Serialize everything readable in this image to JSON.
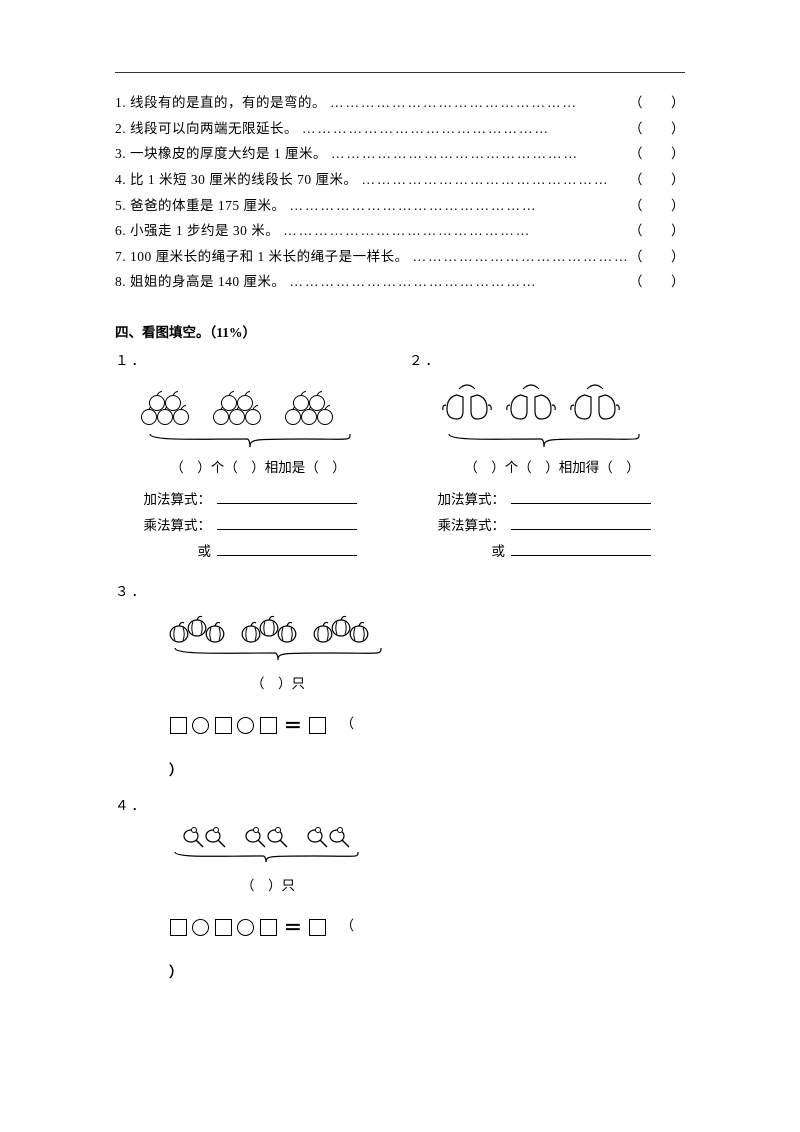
{
  "hr_color": "#333333",
  "text_color": "#000000",
  "bg_color": "#ffffff",
  "tf_items": [
    {
      "num": "1.",
      "text": "线段有的是直的，有的是弯的。"
    },
    {
      "num": "2.",
      "text": "线段可以向两端无限延长。"
    },
    {
      "num": "3.",
      "text": "一块橡皮的厚度大约是 1 厘米。"
    },
    {
      "num": "4.",
      "text": "比 1 米短 30 厘米的线段长 70 厘米。"
    },
    {
      "num": "5.",
      "text": "爸爸的体重是 175 厘米。"
    },
    {
      "num": "6.",
      "text": "小强走 1 步约是 30 米。"
    },
    {
      "num": "7.",
      "text": "100 厘米长的绳子和 1 米长的绳子是一样长。"
    },
    {
      "num": "8.",
      "text": "姐姐的身高是 140 厘米。"
    }
  ],
  "tf_paren": "（　　）",
  "section4_title": "四、看图填空。（11%）",
  "q1": {
    "num": "１．",
    "caption": "（　）个（　）相加是（　）",
    "lines": {
      "add": "加法算式：",
      "mul": "乘法算式：",
      "or": "或"
    },
    "pic": {
      "groups": 3,
      "per_group": 5,
      "item_type": "apple",
      "stroke": "#000000",
      "fill": "#ffffff"
    }
  },
  "q2": {
    "num": "２．",
    "caption": "（　）个（　）相加得（　）",
    "lines": {
      "add": "加法算式：",
      "mul": "乘法算式：",
      "or": "或"
    },
    "pic": {
      "groups": 3,
      "per_group": 2,
      "item_type": "mitten",
      "stroke": "#000000",
      "fill": "#ffffff"
    }
  },
  "q3": {
    "num": "３．",
    "caption": "（　）只",
    "pic": {
      "groups": 3,
      "per_group": 3,
      "item_type": "pumpkin",
      "stroke": "#000000",
      "fill": "#ffffff"
    },
    "trail_open": "（",
    "trail_close": "）"
  },
  "q4": {
    "num": "４．",
    "caption": "（　）只",
    "pic": {
      "pairs": 3,
      "item_type": "paddle",
      "stroke": "#000000",
      "fill": "#ffffff"
    },
    "trail_open": "（",
    "trail_close": "）"
  }
}
